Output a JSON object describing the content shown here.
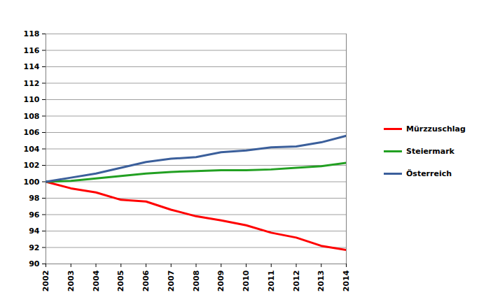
{
  "chart_data": {
    "type": "line",
    "x": [
      2002,
      2003,
      2004,
      2005,
      2006,
      2007,
      2008,
      2009,
      2010,
      2011,
      2012,
      2013,
      2014
    ],
    "xlim": [
      2002,
      2014
    ],
    "xticks": [
      2002,
      2003,
      2004,
      2005,
      2006,
      2007,
      2008,
      2009,
      2010,
      2011,
      2012,
      2013,
      2014
    ],
    "ylim": [
      90,
      118
    ],
    "yticks": [
      90,
      92,
      94,
      96,
      98,
      100,
      102,
      104,
      106,
      108,
      110,
      112,
      114,
      116,
      118
    ],
    "grid": true,
    "legend": "right",
    "series": [
      {
        "name": "Mürzzuschlag",
        "color": "#ff0000",
        "values": [
          100,
          99.2,
          98.7,
          97.8,
          97.6,
          96.6,
          95.8,
          95.3,
          94.7,
          93.8,
          93.2,
          92.2,
          91.7
        ]
      },
      {
        "name": "Steiermark",
        "color": "#22a022",
        "values": [
          100,
          100.1,
          100.4,
          100.7,
          101.0,
          101.2,
          101.3,
          101.4,
          101.4,
          101.5,
          101.7,
          101.9,
          102.3
        ]
      },
      {
        "name": "Österreich",
        "color": "#3b5f9b",
        "values": [
          100,
          100.5,
          101.0,
          101.7,
          102.4,
          102.8,
          103.0,
          103.6,
          103.8,
          104.2,
          104.3,
          104.8,
          105.6
        ]
      }
    ]
  }
}
